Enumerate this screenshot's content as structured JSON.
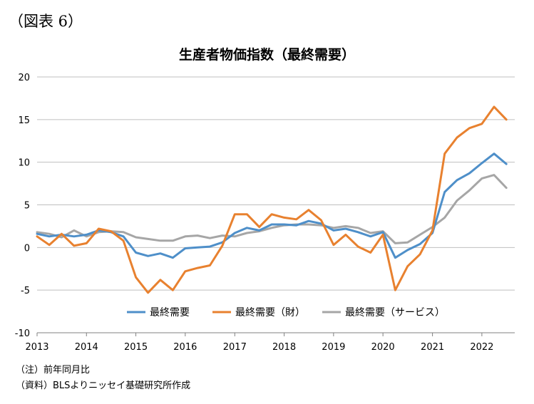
{
  "figure_label": "（図表 6）",
  "notes": [
    "（注）前年同月比",
    "（資料）BLSよりニッセイ基礎研究所作成"
  ],
  "chart_data": {
    "type": "line",
    "title": "生産者物価指数（最終需要）",
    "xlabel": "",
    "ylabel": "",
    "x": [
      "2013-01",
      "2013-04",
      "2013-07",
      "2013-10",
      "2014-01",
      "2014-04",
      "2014-07",
      "2014-10",
      "2015-01",
      "2015-04",
      "2015-07",
      "2015-10",
      "2016-01",
      "2016-04",
      "2016-07",
      "2016-10",
      "2017-01",
      "2017-04",
      "2017-07",
      "2017-10",
      "2018-01",
      "2018-04",
      "2018-07",
      "2018-10",
      "2019-01",
      "2019-04",
      "2019-07",
      "2019-10",
      "2020-01",
      "2020-04",
      "2020-07",
      "2020-10",
      "2021-01",
      "2021-04",
      "2021-07",
      "2021-10",
      "2022-01",
      "2022-04",
      "2022-07"
    ],
    "x_tick_labels": [
      "2013",
      "2014",
      "2015",
      "2016",
      "2017",
      "2018",
      "2019",
      "2020",
      "2021",
      "2022"
    ],
    "ylim": [
      -10,
      20
    ],
    "y_ticks": [
      -10,
      -5,
      0,
      5,
      10,
      15,
      20
    ],
    "grid": true,
    "legend_position": "bottom-center",
    "series": [
      {
        "name": "最終需要",
        "color": "#4E8FC9",
        "values": [
          1.6,
          1.3,
          1.5,
          1.3,
          1.5,
          2.0,
          1.8,
          1.3,
          -0.6,
          -1.0,
          -0.7,
          -1.2,
          -0.1,
          0.0,
          0.1,
          0.6,
          1.7,
          2.3,
          2.0,
          2.7,
          2.7,
          2.6,
          3.1,
          2.8,
          2.0,
          2.2,
          1.8,
          1.3,
          1.8,
          -1.2,
          -0.3,
          0.4,
          1.7,
          6.5,
          7.9,
          8.7,
          9.9,
          11.0,
          9.8
        ]
      },
      {
        "name": "最終需要（財）",
        "color": "#E8812F",
        "values": [
          1.3,
          0.3,
          1.6,
          0.2,
          0.5,
          2.2,
          1.9,
          0.8,
          -3.5,
          -5.3,
          -3.8,
          -5.0,
          -2.8,
          -2.4,
          -2.1,
          0.2,
          3.9,
          3.9,
          2.4,
          3.9,
          3.5,
          3.3,
          4.4,
          3.2,
          0.3,
          1.5,
          0.1,
          -0.6,
          1.5,
          -5.0,
          -2.2,
          -0.8,
          2.0,
          11.0,
          12.9,
          14.0,
          14.5,
          16.5,
          15.0
        ]
      },
      {
        "name": "最終需要（サービス）",
        "color": "#A6A6A6",
        "values": [
          1.8,
          1.6,
          1.2,
          2.0,
          1.3,
          1.8,
          1.9,
          1.8,
          1.2,
          1.0,
          0.8,
          0.8,
          1.3,
          1.4,
          1.1,
          1.4,
          1.3,
          1.7,
          1.9,
          2.3,
          2.6,
          2.7,
          2.7,
          2.6,
          2.3,
          2.5,
          2.3,
          1.7,
          1.9,
          0.5,
          0.6,
          1.5,
          2.4,
          3.5,
          5.5,
          6.7,
          8.1,
          8.5,
          7.0
        ]
      }
    ]
  }
}
